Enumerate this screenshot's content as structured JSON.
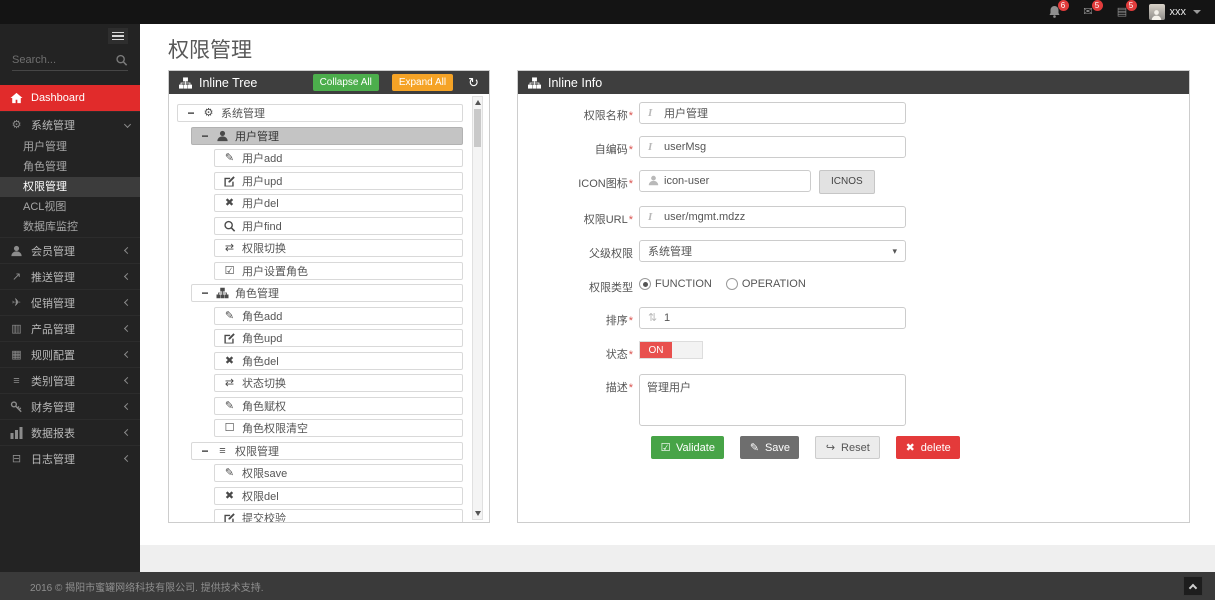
{
  "navbar": {
    "badges": [
      {
        "name": "notifications",
        "icon": "bell",
        "count": "6"
      },
      {
        "name": "messages",
        "icon": "envelope",
        "count": "5"
      },
      {
        "name": "tasks",
        "icon": "tasks",
        "count": "5"
      }
    ],
    "username": "xxx"
  },
  "sidebar": {
    "search_placeholder": "Search...",
    "menu": [
      {
        "label": "Dashboard",
        "icon": "home",
        "type": "active"
      },
      {
        "label": "系统管理",
        "icon": "cogs",
        "type": "open",
        "children": [
          {
            "label": "用户管理",
            "active": false
          },
          {
            "label": "角色管理",
            "active": false
          },
          {
            "label": "权限管理",
            "active": true
          },
          {
            "label": "ACL视图",
            "active": false
          },
          {
            "label": "数据库监控",
            "active": false
          }
        ]
      },
      {
        "label": "会员管理",
        "icon": "user",
        "type": "group"
      },
      {
        "label": "推送管理",
        "icon": "share",
        "type": "group"
      },
      {
        "label": "促销管理",
        "icon": "send",
        "type": "group"
      },
      {
        "label": "产品管理",
        "icon": "book",
        "type": "group"
      },
      {
        "label": "规则配置",
        "icon": "news",
        "type": "group"
      },
      {
        "label": "类别管理",
        "icon": "list",
        "type": "group"
      },
      {
        "label": "财务管理",
        "icon": "key",
        "type": "group"
      },
      {
        "label": "数据报表",
        "icon": "chart",
        "type": "group"
      },
      {
        "label": "日志管理",
        "icon": "folder",
        "type": "group"
      }
    ]
  },
  "page": {
    "title": "权限管理"
  },
  "tree_panel": {
    "title": "Inline Tree",
    "collapse_all": "Collapse All",
    "expand_all": "Expand All",
    "items": [
      {
        "level": 0,
        "icon": "cogs",
        "label": "系统管理",
        "group": true,
        "selected": false
      },
      {
        "level": 1,
        "icon": "user",
        "label": "用户管理",
        "group": true,
        "selected": true
      },
      {
        "level": 2,
        "icon": "pencil",
        "label": "用户add",
        "group": false,
        "selected": false
      },
      {
        "level": 2,
        "icon": "edit",
        "label": "用户upd",
        "group": false,
        "selected": false
      },
      {
        "level": 2,
        "icon": "x",
        "label": "用户del",
        "group": false,
        "selected": false
      },
      {
        "level": 2,
        "icon": "search",
        "label": "用户find",
        "group": false,
        "selected": false
      },
      {
        "level": 2,
        "icon": "exchange",
        "label": "权限切换",
        "group": false,
        "selected": false
      },
      {
        "level": 2,
        "icon": "check-square",
        "label": "用户设置角色",
        "group": false,
        "selected": false
      },
      {
        "level": 1,
        "icon": "sitemap",
        "label": "角色管理",
        "group": true,
        "selected": false
      },
      {
        "level": 2,
        "icon": "pencil",
        "label": "角色add",
        "group": false,
        "selected": false
      },
      {
        "level": 2,
        "icon": "edit",
        "label": "角色upd",
        "group": false,
        "selected": false
      },
      {
        "level": 2,
        "icon": "x",
        "label": "角色del",
        "group": false,
        "selected": false
      },
      {
        "level": 2,
        "icon": "exchange",
        "label": "状态切换",
        "group": false,
        "selected": false
      },
      {
        "level": 2,
        "icon": "pencil",
        "label": "角色赋权",
        "group": false,
        "selected": false
      },
      {
        "level": 2,
        "icon": "square",
        "label": "角色权限清空",
        "group": false,
        "selected": false
      },
      {
        "level": 1,
        "icon": "list",
        "label": "权限管理",
        "group": true,
        "selected": false
      },
      {
        "level": 2,
        "icon": "pencil",
        "label": "权限save",
        "group": false,
        "selected": false
      },
      {
        "level": 2,
        "icon": "x",
        "label": "权限del",
        "group": false,
        "selected": false
      },
      {
        "level": 2,
        "icon": "edit",
        "label": "提交校验",
        "group": false,
        "selected": false
      }
    ]
  },
  "info_panel": {
    "title": "Inline Info",
    "fields": {
      "name": {
        "label": "权限名称",
        "required": true,
        "value": "用户管理"
      },
      "code": {
        "label": "自编码",
        "required": true,
        "value": "userMsg"
      },
      "icon": {
        "label": "ICON图标",
        "required": true,
        "value": "icon-user",
        "button": "ICNOS"
      },
      "url": {
        "label": "权限URL",
        "required": true,
        "value": "user/mgmt.mdzz"
      },
      "parent": {
        "label": "父级权限",
        "required": false,
        "value": "系统管理"
      },
      "type": {
        "label": "权限类型",
        "required": false,
        "options": [
          "FUNCTION",
          "OPERATION"
        ],
        "selected": "FUNCTION"
      },
      "sort": {
        "label": "排序",
        "required": true,
        "value": "1"
      },
      "status": {
        "label": "状态",
        "required": true,
        "value": "ON"
      },
      "desc": {
        "label": "描述",
        "required": true,
        "value": "管理用户"
      }
    },
    "buttons": {
      "validate": "Validate",
      "save": "Save",
      "reset": "Reset",
      "delete": "delete"
    }
  },
  "footer": {
    "text": "2016 © 揭阳市蜜罐网络科技有限公司. 提供技术支持."
  },
  "colors": {
    "accent_red": "#e12b2b",
    "green": "#47a447",
    "orange": "#f5a326",
    "delete_red": "#e43a3a",
    "panel_header": "#3e3e3e",
    "status_on": "#e8504e"
  }
}
